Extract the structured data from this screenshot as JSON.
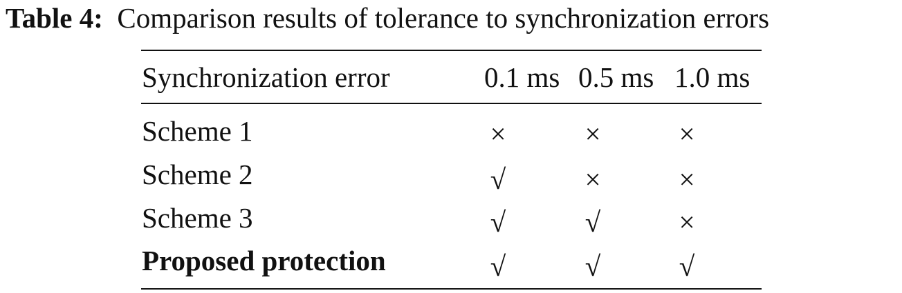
{
  "caption": {
    "label": "Table 4:",
    "text": "Comparison results of tolerance to synchronization errors"
  },
  "table": {
    "header": [
      "Synchronization error",
      "0.1 ms",
      "0.5 ms",
      "1.0 ms"
    ],
    "rows": [
      [
        "Scheme 1",
        "×",
        "×",
        "×"
      ],
      [
        "Scheme 2",
        "√",
        "×",
        "×"
      ],
      [
        "Scheme 3",
        "√",
        "√",
        "×"
      ],
      [
        "Proposed protection",
        "√",
        "√",
        "√"
      ]
    ]
  }
}
